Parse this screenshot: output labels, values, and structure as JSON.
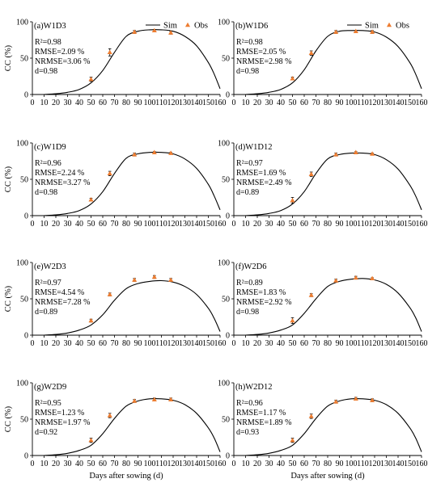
{
  "chart_data": [
    {
      "type": "line",
      "id": "a",
      "title": "(a)W1D3",
      "stats": [
        "R²=0.98",
        "RMSE=2.09 %",
        "NRMSE=3.06 %",
        "d=0.98"
      ],
      "ylabel": "CC (%)",
      "xlabel": "",
      "xlim": [
        0,
        160
      ],
      "ylim": [
        0,
        100
      ],
      "xticks": [
        0,
        10,
        20,
        30,
        40,
        50,
        60,
        70,
        80,
        90,
        100,
        110,
        120,
        130,
        140,
        150,
        160
      ],
      "yticks": [
        0,
        50,
        100
      ],
      "legend": {
        "position": "top-right",
        "entries": [
          "Sim",
          "Obs"
        ]
      },
      "series": [
        {
          "name": "Sim",
          "kind": "line",
          "x": [
            10,
            20,
            30,
            40,
            50,
            60,
            70,
            80,
            90,
            100,
            110,
            120,
            130,
            140,
            150,
            155,
            160
          ],
          "y": [
            0,
            1,
            3,
            7,
            16,
            33,
            58,
            80,
            87,
            89,
            89,
            87,
            80,
            67,
            44,
            28,
            8
          ]
        },
        {
          "name": "Obs",
          "kind": "scatter",
          "x": [
            50,
            66,
            87,
            104,
            118
          ],
          "y": [
            21,
            58,
            86,
            88,
            85
          ],
          "err": [
            3,
            5,
            2,
            1.5,
            2
          ]
        }
      ]
    },
    {
      "type": "line",
      "id": "b",
      "title": "(b)W1D6",
      "stats": [
        "R²=0.98",
        "RMSE=2.05 %",
        "NRMSE=2.98 %",
        "d=0.98"
      ],
      "ylabel": "",
      "xlabel": "",
      "xlim": [
        0,
        160
      ],
      "ylim": [
        0,
        100
      ],
      "xticks": [
        0,
        10,
        20,
        30,
        40,
        50,
        60,
        70,
        80,
        90,
        100,
        110,
        120,
        130,
        140,
        150,
        160
      ],
      "yticks": [
        0,
        50,
        100
      ],
      "legend": {
        "position": "top-right",
        "entries": [
          "Sim",
          "Obs"
        ]
      },
      "series": [
        {
          "name": "Sim",
          "kind": "line",
          "x": [
            10,
            20,
            30,
            40,
            50,
            60,
            70,
            80,
            90,
            100,
            110,
            120,
            130,
            140,
            150,
            155,
            160
          ],
          "y": [
            0,
            1,
            3,
            7,
            16,
            34,
            60,
            80,
            87,
            88,
            88,
            86,
            79,
            66,
            44,
            28,
            8
          ]
        },
        {
          "name": "Obs",
          "kind": "scatter",
          "x": [
            50,
            66,
            87,
            104,
            118
          ],
          "y": [
            22,
            57,
            86,
            87,
            86
          ],
          "err": [
            2,
            3,
            2,
            1,
            2
          ]
        }
      ]
    },
    {
      "type": "line",
      "id": "c",
      "title": "(c)W1D9",
      "stats": [
        "R²=0.96",
        "RMSE=2.24 %",
        "NRMSE=3.27 %",
        "d=0.98"
      ],
      "ylabel": "CC (%)",
      "xlabel": "",
      "xlim": [
        0,
        160
      ],
      "ylim": [
        0,
        100
      ],
      "xticks": [
        0,
        10,
        20,
        30,
        40,
        50,
        60,
        70,
        80,
        90,
        100,
        110,
        120,
        130,
        140,
        150,
        160
      ],
      "yticks": [
        0,
        50,
        100
      ],
      "legend": {
        "position": "none",
        "entries": []
      },
      "series": [
        {
          "name": "Sim",
          "kind": "line",
          "x": [
            10,
            20,
            30,
            40,
            50,
            60,
            70,
            80,
            90,
            100,
            110,
            120,
            130,
            140,
            150,
            155,
            160
          ],
          "y": [
            0,
            1,
            3,
            7,
            16,
            33,
            58,
            79,
            85,
            87,
            87,
            85,
            78,
            65,
            43,
            27,
            8
          ]
        },
        {
          "name": "Obs",
          "kind": "scatter",
          "x": [
            50,
            66,
            87,
            104,
            118
          ],
          "y": [
            22,
            58,
            84,
            87,
            86
          ],
          "err": [
            2,
            3,
            2,
            1,
            1
          ]
        }
      ]
    },
    {
      "type": "line",
      "id": "d",
      "title": "(d)W1D12",
      "stats": [
        "R²=0.97",
        "RMSE=1.69 %",
        "NRMSE=2.49 %",
        "d=0.89"
      ],
      "ylabel": "",
      "xlabel": "",
      "xlim": [
        0,
        160
      ],
      "ylim": [
        0,
        100
      ],
      "xticks": [
        0,
        10,
        20,
        30,
        40,
        50,
        60,
        70,
        80,
        90,
        100,
        110,
        120,
        130,
        140,
        150,
        160
      ],
      "yticks": [
        0,
        50,
        100
      ],
      "legend": {
        "position": "none",
        "entries": []
      },
      "series": [
        {
          "name": "Sim",
          "kind": "line",
          "x": [
            10,
            20,
            30,
            40,
            50,
            60,
            70,
            80,
            90,
            100,
            110,
            120,
            130,
            140,
            150,
            155,
            160
          ],
          "y": [
            0,
            1,
            3,
            7,
            16,
            33,
            58,
            78,
            84,
            86,
            86,
            84,
            77,
            64,
            42,
            27,
            8
          ]
        },
        {
          "name": "Obs",
          "kind": "scatter",
          "x": [
            50,
            66,
            87,
            104,
            118
          ],
          "y": [
            21,
            57,
            84,
            87,
            85
          ],
          "err": [
            4,
            3,
            2,
            1,
            1
          ]
        }
      ]
    },
    {
      "type": "line",
      "id": "e",
      "title": "(e)W2D3",
      "stats": [
        "R²=0.97",
        "RMSE=4.54 %",
        "NRMSE=7.28 %",
        "d=0.89"
      ],
      "ylabel": "CC (%)",
      "xlabel": "",
      "xlim": [
        0,
        160
      ],
      "ylim": [
        0,
        100
      ],
      "xticks": [
        0,
        10,
        20,
        30,
        40,
        50,
        60,
        70,
        80,
        90,
        100,
        110,
        120,
        130,
        140,
        150,
        160
      ],
      "yticks": [
        0,
        50,
        100
      ],
      "legend": {
        "position": "none",
        "entries": []
      },
      "series": [
        {
          "name": "Sim",
          "kind": "line",
          "x": [
            10,
            20,
            30,
            40,
            50,
            60,
            70,
            80,
            90,
            100,
            110,
            120,
            130,
            140,
            150,
            155,
            160
          ],
          "y": [
            0,
            1,
            3,
            7,
            14,
            28,
            48,
            64,
            71,
            74,
            75,
            73,
            67,
            56,
            37,
            23,
            5
          ]
        },
        {
          "name": "Obs",
          "kind": "scatter",
          "x": [
            50,
            66,
            87,
            104,
            118
          ],
          "y": [
            20,
            56,
            76,
            80,
            76
          ],
          "err": [
            2,
            2,
            2,
            2,
            2
          ]
        }
      ]
    },
    {
      "type": "line",
      "id": "f",
      "title": "(f)W2D6",
      "stats": [
        "R²=0.89",
        "RMSE=1.83 %",
        "NRMSE=2.92 %",
        "d=0.98"
      ],
      "ylabel": "",
      "xlabel": "",
      "xlim": [
        0,
        160
      ],
      "ylim": [
        0,
        100
      ],
      "xticks": [
        0,
        10,
        20,
        30,
        40,
        50,
        60,
        70,
        80,
        90,
        100,
        110,
        120,
        130,
        140,
        150,
        160
      ],
      "yticks": [
        0,
        50,
        100
      ],
      "legend": {
        "position": "none",
        "entries": []
      },
      "series": [
        {
          "name": "Sim",
          "kind": "line",
          "x": [
            10,
            20,
            30,
            40,
            50,
            60,
            70,
            80,
            90,
            100,
            110,
            120,
            130,
            140,
            150,
            155,
            160
          ],
          "y": [
            0,
            1,
            3,
            7,
            14,
            30,
            50,
            67,
            74,
            77,
            78,
            76,
            70,
            58,
            38,
            24,
            5
          ]
        },
        {
          "name": "Obs",
          "kind": "scatter",
          "x": [
            50,
            66,
            87,
            104,
            118
          ],
          "y": [
            20,
            55,
            75,
            79,
            78
          ],
          "err": [
            4,
            2,
            2,
            2,
            1
          ]
        }
      ]
    },
    {
      "type": "line",
      "id": "g",
      "title": "(g)W2D9",
      "stats": [
        "R²=0.95",
        "RMSE=1.23 %",
        "NRMSE=1.97 %",
        "d=0.92"
      ],
      "ylabel": "CC (%)",
      "xlabel": "Days after sowing (d)",
      "xlim": [
        0,
        160
      ],
      "ylim": [
        0,
        100
      ],
      "xticks": [
        0,
        10,
        20,
        30,
        40,
        50,
        60,
        70,
        80,
        90,
        100,
        110,
        120,
        130,
        140,
        150,
        160
      ],
      "yticks": [
        0,
        50,
        100
      ],
      "legend": {
        "position": "none",
        "entries": []
      },
      "series": [
        {
          "name": "Sim",
          "kind": "line",
          "x": [
            10,
            20,
            30,
            40,
            50,
            60,
            70,
            80,
            90,
            100,
            110,
            120,
            130,
            140,
            150,
            155,
            160
          ],
          "y": [
            0,
            1,
            3,
            7,
            14,
            30,
            51,
            68,
            75,
            78,
            78,
            76,
            70,
            58,
            38,
            24,
            5
          ]
        },
        {
          "name": "Obs",
          "kind": "scatter",
          "x": [
            50,
            66,
            87,
            104,
            118
          ],
          "y": [
            21,
            55,
            75,
            77,
            77
          ],
          "err": [
            3,
            3,
            2,
            2,
            2
          ]
        }
      ]
    },
    {
      "type": "line",
      "id": "h",
      "title": "(h)W2D12",
      "stats": [
        "R²=0.96",
        "RMSE=1.17 %",
        "NRMSE=1.89 %",
        "d=0.93"
      ],
      "ylabel": "",
      "xlabel": "Days after sowing (d)",
      "xlim": [
        0,
        160
      ],
      "ylim": [
        0,
        100
      ],
      "xticks": [
        0,
        10,
        20,
        30,
        40,
        50,
        60,
        70,
        80,
        90,
        100,
        110,
        120,
        130,
        140,
        150,
        160
      ],
      "yticks": [
        0,
        50,
        100
      ],
      "legend": {
        "position": "none",
        "entries": []
      },
      "series": [
        {
          "name": "Sim",
          "kind": "line",
          "x": [
            10,
            20,
            30,
            40,
            50,
            60,
            70,
            80,
            90,
            100,
            110,
            120,
            130,
            140,
            150,
            155,
            160
          ],
          "y": [
            0,
            1,
            3,
            7,
            14,
            30,
            51,
            68,
            75,
            78,
            78,
            76,
            70,
            58,
            38,
            24,
            5
          ]
        },
        {
          "name": "Obs",
          "kind": "scatter",
          "x": [
            50,
            66,
            87,
            104,
            118
          ],
          "y": [
            21,
            54,
            74,
            78,
            76
          ],
          "err": [
            3,
            3,
            2,
            2,
            2
          ]
        }
      ]
    }
  ],
  "colors": {
    "sim_line": "#000000",
    "obs_marker": "#ED7D31",
    "axis": "#000000"
  },
  "icons": {
    "obs_marker": "triangle-marker-icon"
  }
}
